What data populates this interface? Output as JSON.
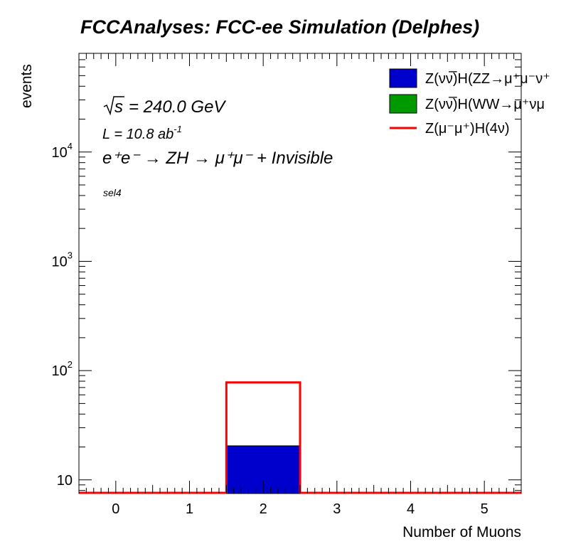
{
  "chart_data": {
    "type": "bar",
    "title": "FCCAnalyses: FCC-ee Simulation (Delphes)",
    "xlabel": "Number of Muons",
    "ylabel": "events",
    "xlim": [
      -0.5,
      5.5
    ],
    "ylim": [
      7.5,
      80000
    ],
    "ylog": true,
    "grid": false,
    "x_ticks": [
      "0",
      "1",
      "2",
      "3",
      "4",
      "5"
    ],
    "y_ticks": [
      {
        "value": 10,
        "label": "10",
        "exp": ""
      },
      {
        "value": 100,
        "label": "10",
        "exp": "2"
      },
      {
        "value": 1000,
        "label": "10",
        "exp": "3"
      },
      {
        "value": 10000,
        "label": "10",
        "exp": "4"
      }
    ],
    "bin_edges": [
      -0.5,
      0.5,
      1.5,
      2.5,
      3.5,
      4.5,
      5.5
    ],
    "bins": [
      0,
      1,
      2,
      3,
      4,
      5
    ],
    "legend_position": "top-right",
    "series": [
      {
        "name": "Z(νν̅)H(ZZ→μ⁺μ⁻ν⁺",
        "style": "filled",
        "color": "#0000cc",
        "values": [
          0,
          0,
          20.5,
          0,
          0,
          0
        ]
      },
      {
        "name": "Z(νν̅)H(WW→μ⁺νμ",
        "style": "filled",
        "color": "#009900",
        "values": [
          0,
          0,
          0,
          0,
          0,
          0
        ]
      },
      {
        "name": "Z(μ⁻μ⁺)H(4ν)",
        "style": "line",
        "color": "#ff0000",
        "values": [
          0,
          0,
          78,
          0,
          0,
          0
        ]
      }
    ],
    "annotations": {
      "sqrt_s": "s",
      "energy": "= 240.0 GeV",
      "lumi": "L = 10.8 ab",
      "lumi_exp": "-1",
      "process": "e⁺e⁻ → ZH → μ⁺μ⁻ + Invisible",
      "selection": "sel4"
    }
  }
}
